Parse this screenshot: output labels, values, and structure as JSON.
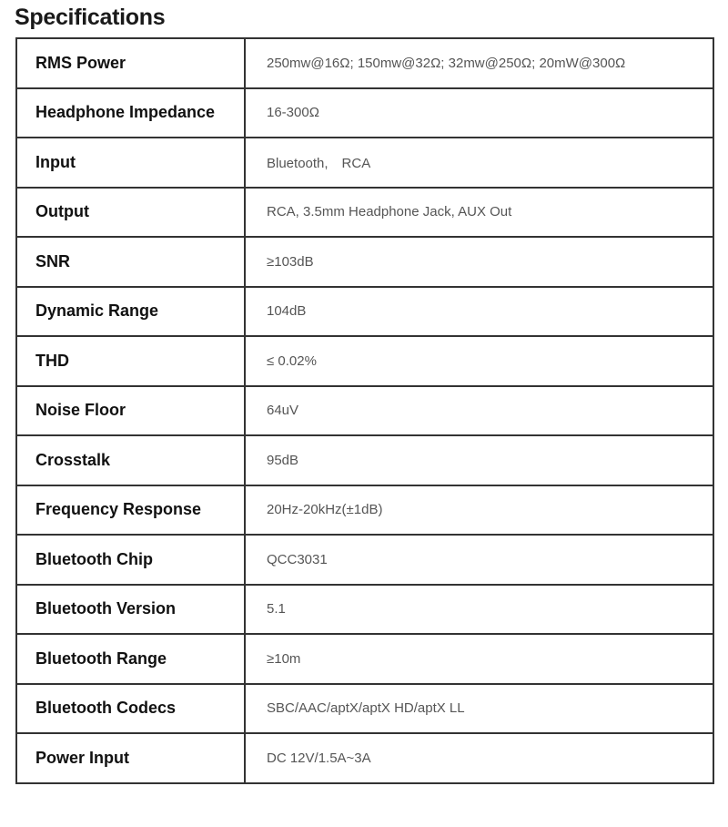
{
  "title": "Specifications",
  "specs": [
    {
      "label": "RMS Power",
      "value": "250mw@16Ω; 150mw@32Ω; 32mw@250Ω; 20mW@300Ω"
    },
    {
      "label": "Headphone Impedance",
      "value": "16-300Ω"
    },
    {
      "label": "Input",
      "value": "Bluetooth,　RCA"
    },
    {
      "label": "Output",
      "value": "RCA, 3.5mm Headphone Jack, AUX Out"
    },
    {
      "label": "SNR",
      "value": "≥103dB"
    },
    {
      "label": "Dynamic Range",
      "value": "104dB"
    },
    {
      "label": "THD",
      "value": "≤ 0.02%"
    },
    {
      "label": "Noise Floor",
      "value": "64uV"
    },
    {
      "label": "Crosstalk",
      "value": "95dB"
    },
    {
      "label": "Frequency Response",
      "value": "20Hz-20kHz(±1dB)"
    },
    {
      "label": "Bluetooth Chip",
      "value": "QCC3031"
    },
    {
      "label": "Bluetooth Version",
      "value": "5.1"
    },
    {
      "label": "Bluetooth Range",
      "value": "≥10m"
    },
    {
      "label": "Bluetooth Codecs",
      "value": "SBC/AAC/aptX/aptX HD/aptX LL"
    },
    {
      "label": "Power Input",
      "value": "DC 12V/1.5A~3A"
    }
  ]
}
